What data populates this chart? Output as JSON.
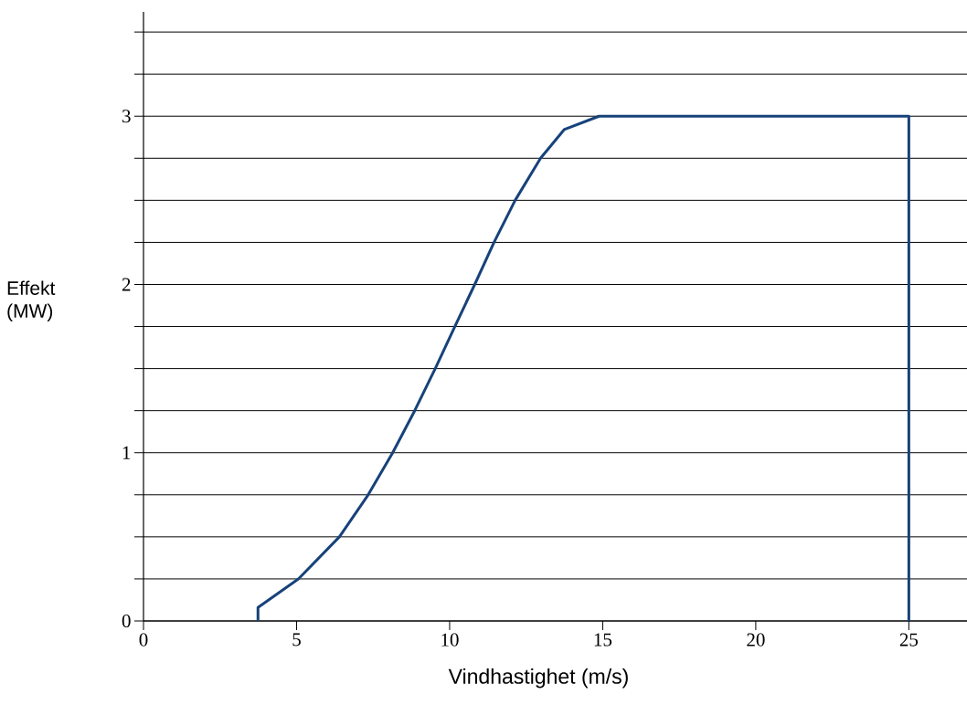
{
  "chart_data": {
    "type": "line",
    "xlabel": "Vindhastighet (m/s)",
    "ylabel": "Effekt (MW)",
    "x": [
      3.74,
      3.74,
      5.06,
      6.4,
      7.34,
      8.14,
      8.86,
      9.53,
      10.17,
      10.82,
      11.45,
      12.14,
      12.97,
      13.74,
      14.88,
      15,
      25,
      25
    ],
    "series": [
      {
        "color": "#17427a",
        "values": [
          0,
          0.08,
          0.25,
          0.5,
          0.75,
          1.0,
          1.25,
          1.5,
          1.75,
          2.0,
          2.25,
          2.5,
          2.75,
          2.92,
          3.0,
          3.0,
          3.0,
          0
        ]
      }
    ],
    "xlim": [
      0,
      26.9
    ],
    "ylim": [
      0,
      3.62
    ],
    "xticks": [
      0,
      5,
      10,
      15,
      20,
      25
    ],
    "yticks": [
      0,
      {
        "value": 0.25,
        "label": null
      },
      {
        "value": 0.5,
        "label": null
      },
      {
        "value": 0.75,
        "label": null
      },
      1,
      {
        "value": 1.25,
        "label": null
      },
      {
        "value": 1.5,
        "label": null
      },
      {
        "value": 1.75,
        "label": null
      },
      2,
      {
        "value": 2.25,
        "label": null
      },
      {
        "value": 2.5,
        "label": null
      },
      {
        "value": 2.75,
        "label": null
      },
      3,
      {
        "value": 3.25,
        "label": null
      },
      {
        "value": 3.5,
        "label": null
      }
    ],
    "grid": "y",
    "marker": "none",
    "line_style": "solid"
  }
}
